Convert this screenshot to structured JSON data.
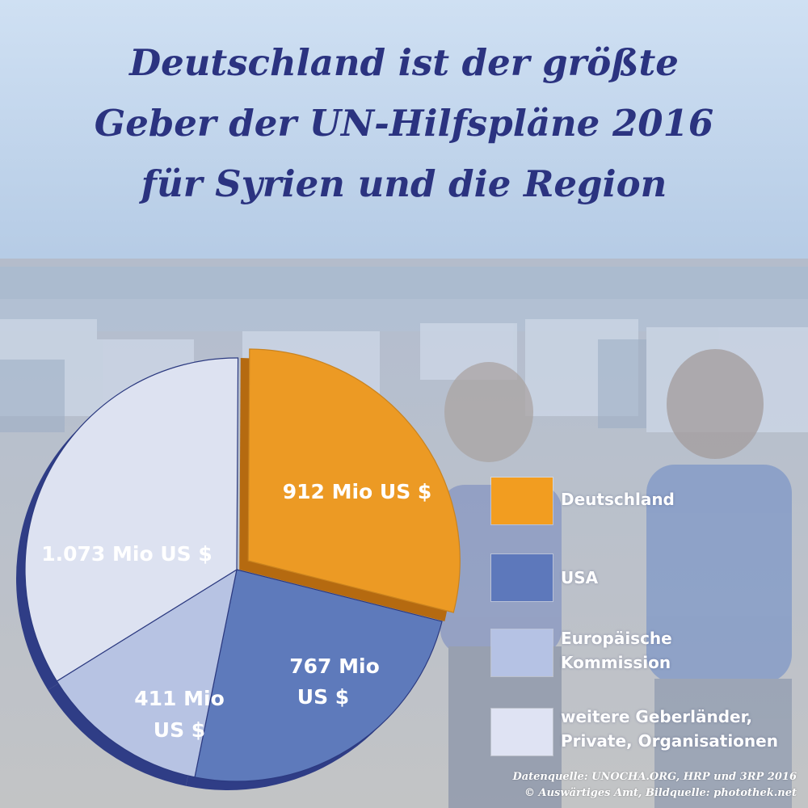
{
  "title": {
    "line1": "Deutschland ist der größte",
    "line2": "Geber der UN-Hilfspläne 2016",
    "line3": "für Syrien und die Region"
  },
  "chart_data": {
    "type": "pie",
    "title": "Deutschland ist der größte Geber der UN-Hilfspläne 2016 für Syrien und die Region",
    "unit": "Mio US $",
    "slices": [
      {
        "name": "Deutschland",
        "value": 912,
        "label": "912 Mio US $",
        "color": "#ec9a24",
        "exploded": true
      },
      {
        "name": "USA",
        "value": 767,
        "label": "767 Mio US $",
        "color": "#5e7abb"
      },
      {
        "name": "Europäische Kommission",
        "value": 411,
        "label": "411 Mio US $",
        "color": "#b7c3e3"
      },
      {
        "name": "weitere Geberländer, Private, Organisationen",
        "value": 1073,
        "label": "1.073 Mio US $",
        "color": "#dde2f1"
      }
    ]
  },
  "legend": {
    "items": [
      {
        "line1": "Deutschland",
        "line2": "",
        "color": "#f29d20"
      },
      {
        "line1": "USA",
        "line2": "",
        "color": "#5d78bb"
      },
      {
        "line1": "Europäische",
        "line2": "Kommission",
        "color": "#b5c2e4"
      },
      {
        "line1": "weitere Geberländer,",
        "line2": "Private, Organisationen",
        "color": "#dfe3f3"
      }
    ]
  },
  "labels": {
    "de_line1": "912 Mio US $",
    "usa_line1": "767 Mio",
    "usa_line2": "US $",
    "eu_line1": "411 Mio",
    "eu_line2": "US $",
    "other_line1": "1.073 Mio US $"
  },
  "footer": {
    "line1": "Datenquelle: UNOCHA.ORG, HRP und 3RP 2016",
    "line2": "© Auswärtiges Amt, Bildquelle: photothek.net"
  }
}
